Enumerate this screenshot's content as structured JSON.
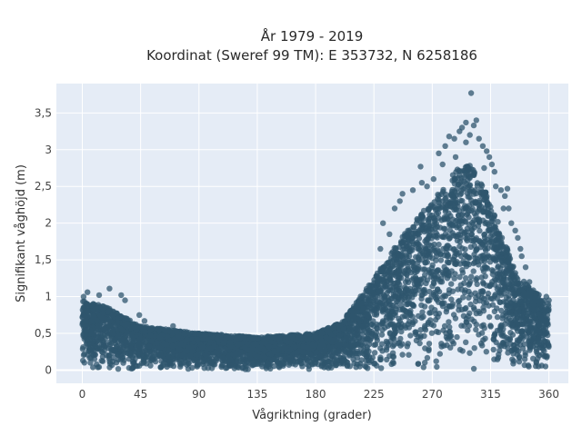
{
  "chart_data": {
    "type": "scatter",
    "title_line1": "År 1979 - 2019",
    "title_line2": "Koordinat (Sweref 99 TM): E 353732, N 6258186",
    "xlabel": "Vågriktning (grader)",
    "ylabel": "Signifikant våghöjd (m)",
    "xlim": [
      -20,
      375
    ],
    "ylim": [
      -0.18,
      3.9
    ],
    "x_ticks": [
      0,
      45,
      90,
      135,
      180,
      225,
      270,
      315,
      360
    ],
    "x_tick_labels": [
      "0",
      "45",
      "90",
      "135",
      "180",
      "225",
      "270",
      "315",
      "360"
    ],
    "y_ticks": [
      0,
      0.5,
      1,
      1.5,
      2,
      2.5,
      3,
      3.5
    ],
    "y_tick_labels": [
      "0",
      "0,5",
      "1",
      "1,5",
      "2",
      "2,5",
      "3",
      "3,5"
    ],
    "grid": true,
    "legend": "none",
    "marker_color": "#2f566e",
    "plot_background": "#e5ecf6",
    "envelope": {
      "x": [
        0,
        20,
        45,
        90,
        135,
        180,
        200,
        225,
        250,
        270,
        290,
        300,
        315,
        335,
        360
      ],
      "y_upper": [
        0.95,
        0.85,
        0.6,
        0.5,
        0.45,
        0.5,
        0.65,
        1.25,
        1.9,
        2.3,
        2.75,
        2.8,
        2.3,
        1.3,
        0.9
      ],
      "y_lower": [
        0,
        0,
        0,
        0,
        0,
        0,
        0,
        0,
        0,
        0,
        0,
        0,
        0,
        0,
        0
      ]
    },
    "outliers": [
      {
        "x": 21,
        "y": 1.11
      },
      {
        "x": 4,
        "y": 1.06
      },
      {
        "x": 13,
        "y": 1.02
      },
      {
        "x": 30,
        "y": 1.02
      },
      {
        "x": 1,
        "y": 1.0
      },
      {
        "x": 33,
        "y": 0.95
      },
      {
        "x": 44,
        "y": 0.75
      },
      {
        "x": 48,
        "y": 0.67
      },
      {
        "x": 70,
        "y": 0.6
      },
      {
        "x": 230,
        "y": 1.65
      },
      {
        "x": 237,
        "y": 1.85
      },
      {
        "x": 232,
        "y": 2.0
      },
      {
        "x": 241,
        "y": 2.2
      },
      {
        "x": 247,
        "y": 2.4
      },
      {
        "x": 245,
        "y": 2.3
      },
      {
        "x": 255,
        "y": 2.45
      },
      {
        "x": 262,
        "y": 2.55
      },
      {
        "x": 261,
        "y": 2.77
      },
      {
        "x": 271,
        "y": 2.6
      },
      {
        "x": 275,
        "y": 2.95
      },
      {
        "x": 280,
        "y": 3.05
      },
      {
        "x": 283,
        "y": 3.18
      },
      {
        "x": 287,
        "y": 3.15
      },
      {
        "x": 291,
        "y": 3.25
      },
      {
        "x": 293,
        "y": 3.3
      },
      {
        "x": 296,
        "y": 3.37
      },
      {
        "x": 299,
        "y": 3.2
      },
      {
        "x": 302,
        "y": 3.33
      },
      {
        "x": 304,
        "y": 3.4
      },
      {
        "x": 300,
        "y": 3.77
      },
      {
        "x": 306,
        "y": 3.15
      },
      {
        "x": 309,
        "y": 3.05
      },
      {
        "x": 312,
        "y": 2.98
      },
      {
        "x": 314,
        "y": 2.9
      },
      {
        "x": 316,
        "y": 2.8
      },
      {
        "x": 318,
        "y": 2.7
      },
      {
        "x": 319,
        "y": 2.5
      },
      {
        "x": 323,
        "y": 2.45
      },
      {
        "x": 326,
        "y": 2.37
      },
      {
        "x": 328,
        "y": 2.47
      },
      {
        "x": 329,
        "y": 2.2
      },
      {
        "x": 331,
        "y": 2.0
      },
      {
        "x": 334,
        "y": 1.9
      },
      {
        "x": 336,
        "y": 1.8
      },
      {
        "x": 338,
        "y": 1.65
      },
      {
        "x": 339,
        "y": 1.55
      },
      {
        "x": 342,
        "y": 1.4
      },
      {
        "x": 345,
        "y": 1.2
      },
      {
        "x": 358,
        "y": 1.0
      },
      {
        "x": 360,
        "y": 0.95
      },
      {
        "x": 288,
        "y": 2.9
      },
      {
        "x": 296,
        "y": 3.1
      },
      {
        "x": 310,
        "y": 2.75
      },
      {
        "x": 325,
        "y": 2.2
      },
      {
        "x": 278,
        "y": 2.8
      },
      {
        "x": 266,
        "y": 2.5
      }
    ]
  }
}
